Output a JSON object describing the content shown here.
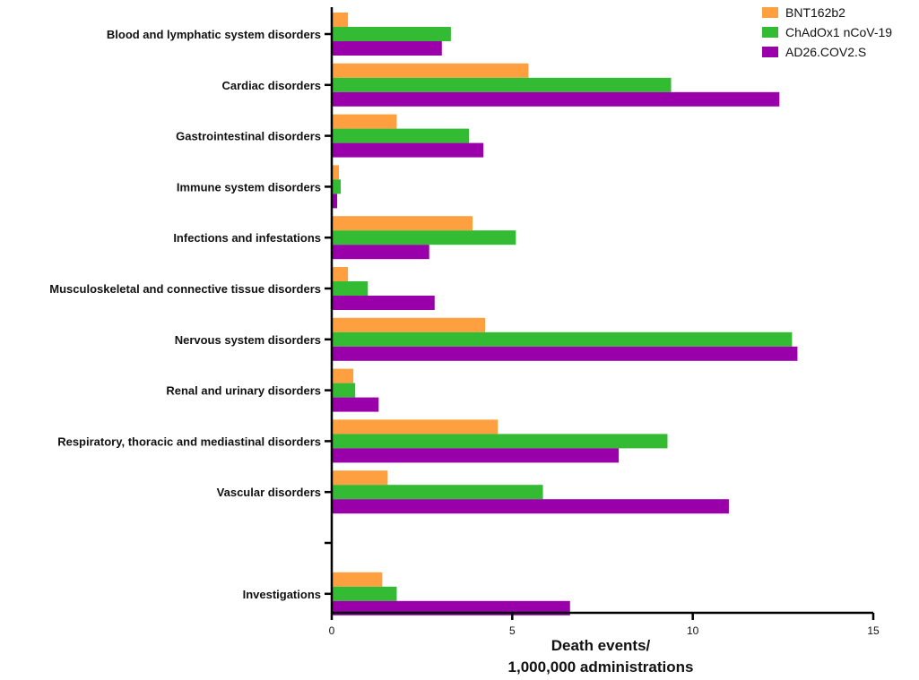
{
  "chart_data": {
    "type": "bar",
    "orientation": "horizontal",
    "categories": [
      "Blood and lymphatic system disorders",
      "Cardiac disorders",
      "Gastrointestinal disorders",
      "Immune system disorders",
      "Infections and infestations",
      "Musculoskeletal and connective tissue disorders",
      "Nervous system disorders",
      "Renal and urinary disorders",
      "Respiratory, thoracic and mediastinal disorders",
      "Vascular disorders",
      "",
      "Investigations"
    ],
    "series": [
      {
        "name": "BNT162b2",
        "color": "#FFA040",
        "values": [
          0.45,
          5.45,
          1.8,
          0.2,
          3.9,
          0.45,
          4.25,
          0.6,
          4.6,
          1.55,
          null,
          1.4
        ]
      },
      {
        "name": "ChAdOx1 nCoV-19",
        "color": "#33BB33",
        "values": [
          3.3,
          9.4,
          3.8,
          0.25,
          5.1,
          1.0,
          12.75,
          0.65,
          9.3,
          5.85,
          null,
          1.8
        ]
      },
      {
        "name": "AD26.COV2.S",
        "color": "#9900AA",
        "values": [
          3.05,
          12.4,
          4.2,
          0.15,
          2.7,
          2.85,
          12.9,
          1.3,
          7.95,
          11.0,
          null,
          6.6
        ]
      }
    ],
    "xlabel_lines": [
      "Death events/",
      "1,000,000 administrations"
    ],
    "xlim": [
      0,
      15
    ],
    "xticks": [
      0,
      5,
      10,
      15
    ],
    "grid": false,
    "legend_position": "top-right"
  }
}
